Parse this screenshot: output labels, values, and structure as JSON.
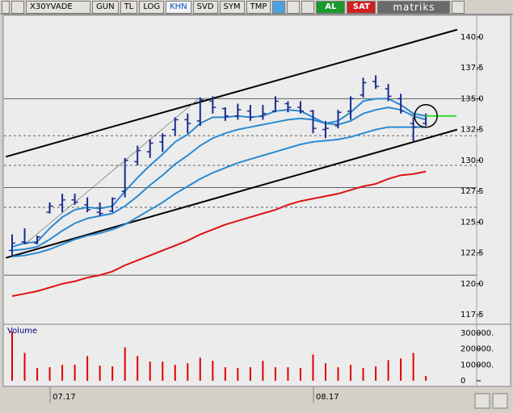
{
  "toolbar": {
    "symbol": "X30YVADE",
    "buttons": [
      "GUN",
      "TL",
      "LOG",
      "KHN",
      "SVD",
      "SYM",
      "TMP"
    ],
    "active": "KHN",
    "buy": "AL",
    "sell": "SAT",
    "brand": "matriks"
  },
  "chart_data": {
    "type": "ohlc",
    "categories": [
      null,
      null,
      null,
      null,
      "07.17",
      null,
      null,
      null,
      null,
      null,
      null,
      null,
      null,
      null,
      null,
      null,
      null,
      null,
      null,
      null,
      null,
      null,
      null,
      null,
      null,
      "08.17",
      null,
      null,
      null,
      null,
      null,
      null,
      null,
      null
    ],
    "open": [
      122.7,
      123.4,
      123.3,
      125.8,
      126.4,
      126.8,
      126.4,
      125.8,
      125.9,
      127.5,
      129.9,
      130.7,
      131.5,
      132.5,
      133.3,
      133.2,
      134.8,
      134.2,
      133.6,
      134.0,
      133.6,
      134.0,
      134.6,
      134.3,
      134.0,
      132.5,
      132.8,
      134.0,
      135.3,
      136.4,
      135.8,
      135.0,
      133.0,
      133.0
    ],
    "high": [
      124.0,
      124.5,
      123.9,
      126.6,
      127.3,
      127.3,
      127.0,
      126.6,
      127.0,
      130.2,
      131.2,
      131.7,
      132.2,
      133.5,
      133.8,
      135.1,
      135.2,
      134.3,
      134.6,
      134.5,
      134.5,
      135.2,
      134.8,
      134.8,
      134.1,
      133.2,
      134.1,
      135.2,
      136.7,
      136.9,
      136.2,
      135.4,
      133.5,
      133.8
    ],
    "low": [
      122.2,
      123.2,
      123.2,
      125.7,
      125.8,
      126.4,
      125.8,
      125.5,
      125.8,
      127.0,
      129.6,
      130.2,
      130.7,
      132.0,
      132.2,
      132.8,
      133.8,
      133.2,
      133.3,
      133.2,
      133.3,
      133.9,
      133.9,
      133.8,
      132.2,
      131.8,
      132.6,
      133.3,
      135.1,
      135.8,
      134.8,
      133.8,
      131.5,
      132.8
    ],
    "close": [
      123.3,
      123.3,
      123.8,
      126.3,
      126.8,
      126.6,
      126.0,
      125.7,
      126.9,
      130.0,
      130.8,
      131.4,
      132.0,
      133.3,
      133.0,
      134.9,
      134.3,
      133.6,
      134.1,
      133.5,
      133.8,
      134.8,
      134.3,
      134.0,
      132.6,
      132.6,
      133.9,
      135.0,
      136.3,
      136.0,
      135.2,
      134.0,
      132.7,
      133.6
    ],
    "bar_color": "#1c2a8c",
    "lines": [
      {
        "color": "#2a8ad0",
        "values": [
          123.0,
          123.3,
          123.4,
          124.5,
          125.4,
          126.0,
          126.2,
          126.1,
          126.3,
          127.5,
          128.6,
          129.6,
          130.5,
          131.5,
          132.1,
          133.0,
          133.5,
          133.5,
          133.6,
          133.5,
          133.6,
          134.0,
          134.1,
          134.0,
          133.5,
          133.0,
          133.2,
          133.9,
          134.8,
          135.0,
          135.0,
          134.5,
          133.8,
          133.6
        ]
      },
      {
        "color": "#2a8ad0",
        "values": [
          122.7,
          122.8,
          123.0,
          123.6,
          124.3,
          124.9,
          125.3,
          125.5,
          125.7,
          126.3,
          127.1,
          128.0,
          128.8,
          129.7,
          130.4,
          131.2,
          131.8,
          132.2,
          132.5,
          132.7,
          132.9,
          133.1,
          133.3,
          133.4,
          133.3,
          133.0,
          132.9,
          133.2,
          133.8,
          134.1,
          134.3,
          134.1,
          133.6,
          133.3
        ]
      },
      {
        "color": "#2a8ad0",
        "values": [
          122.2,
          122.3,
          122.5,
          122.8,
          123.2,
          123.6,
          123.9,
          124.1,
          124.4,
          124.8,
          125.4,
          126.0,
          126.6,
          127.3,
          127.9,
          128.5,
          129.0,
          129.4,
          129.8,
          130.1,
          130.4,
          130.7,
          131.0,
          131.3,
          131.5,
          131.6,
          131.7,
          131.9,
          132.2,
          132.5,
          132.7,
          132.7,
          132.7,
          132.7
        ]
      },
      {
        "color": "#e01010",
        "values": [
          119.0,
          119.2,
          119.4,
          119.7,
          120.0,
          120.2,
          120.5,
          120.7,
          121.0,
          121.5,
          121.9,
          122.3,
          122.7,
          123.1,
          123.5,
          124.0,
          124.4,
          124.8,
          125.1,
          125.4,
          125.7,
          126.0,
          126.4,
          126.7,
          126.9,
          127.1,
          127.3,
          127.6,
          127.9,
          128.1,
          128.5,
          128.8,
          128.9,
          129.1
        ]
      }
    ],
    "trendlines": [
      {
        "color": "#000000",
        "width": 2,
        "x": [
          -0.5,
          35.5
        ],
        "values": [
          130.3,
          140.6
        ]
      },
      {
        "color": "#000000",
        "width": 2,
        "x": [
          -0.5,
          35.5
        ],
        "values": [
          122.1,
          132.5
        ]
      },
      {
        "color": "#606060",
        "width": 0.6,
        "x": [
          1,
          15
        ],
        "values": [
          123.2,
          135.1
        ]
      }
    ],
    "hlines": [
      {
        "value": 135.0,
        "style": "solid"
      },
      {
        "value": 132.0,
        "style": "dashed"
      },
      {
        "value": 129.6,
        "style": "dashed"
      },
      {
        "value": 127.8,
        "style": "solid"
      },
      {
        "value": 126.2,
        "style": "dashed"
      },
      {
        "value": 120.7,
        "style": "solid"
      }
    ],
    "last_marker": {
      "index": 33,
      "value": 133.6,
      "color": "#30e030"
    },
    "ylim": [
      116.85,
      141.76
    ],
    "yticks": [
      {
        "value": 140,
        "label": "140.0"
      },
      {
        "value": 137.5,
        "label": "137.5"
      },
      {
        "value": 135,
        "label": "135.0"
      },
      {
        "value": 132.5,
        "label": "132.5"
      },
      {
        "value": 130,
        "label": "130.0"
      },
      {
        "value": 127.5,
        "label": "127.5"
      },
      {
        "value": 125,
        "label": "125.0"
      },
      {
        "value": 122.5,
        "label": "122.5"
      },
      {
        "value": 120,
        "label": "120.0"
      },
      {
        "value": 117.5,
        "label": "117.5"
      }
    ],
    "volume": {
      "name": "Volume",
      "color": "#e00000",
      "values": [
        310000,
        175000,
        80000,
        85000,
        100000,
        100000,
        155000,
        95000,
        90000,
        210000,
        155000,
        120000,
        120000,
        100000,
        110000,
        145000,
        125000,
        85000,
        80000,
        85000,
        125000,
        85000,
        85000,
        80000,
        165000,
        110000,
        85000,
        100000,
        80000,
        90000,
        130000,
        140000,
        175000,
        30000
      ],
      "ylim": [
        0,
        345000
      ],
      "yticks": [
        0,
        {
          "value": 100000,
          "label": "100000."
        },
        {
          "value": 200000,
          "label": "200000."
        },
        {
          "value": 300000,
          "label": "300000."
        }
      ]
    }
  }
}
